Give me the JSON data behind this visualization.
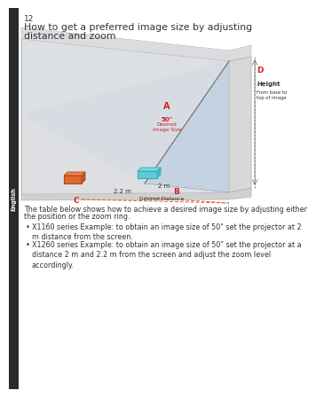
{
  "page_number": "12",
  "sidebar_text": "English",
  "sidebar_bg": "#2a2a2a",
  "title_line1": "How to get a preferred image size by adjusting",
  "title_line2": "distance and zoom",
  "title_fontsize": 7.8,
  "body_text1": "The table below shows how to achieve a desired image size by adjusting either",
  "body_text2": "the position or the zoom ring.",
  "bullet1": "X1160 series Example: to obtain an image size of 50\" set the projector at 2\nm distance from the screen.",
  "bullet2": "X1260 series Example: to obtain an image size of 50\" set the projector at a\ndistance 2 m and 2.2 m from the screen and adjust the zoom level\naccordingly.",
  "label_A": "A",
  "label_B": "B",
  "label_C": "C",
  "label_D": "D",
  "label_50": "50\"",
  "label_desired_image_size": "Desired\nImage Size",
  "label_height": "Height",
  "label_height_sub": "From base to\ntop of image",
  "label_2m": "2 m",
  "label_22m": "2.2 m",
  "label_desired_distance": "Desired Distance",
  "bg_color": "#ffffff",
  "beam_blue": "#b0c8e0",
  "beam_gray": "#c8ccd0",
  "screen_face": "#d8d8d8",
  "screen_edge": "#aaaaaa",
  "floor_color": "#d0d0d0",
  "ceil_color": "#e0e0e0",
  "wall_color": "#c8c8cc",
  "projector_teal": "#5eccd4",
  "projector_orange": "#e06830",
  "orange_dashed": "#d86030",
  "text_dark": "#333333",
  "red_label": "#cc2222",
  "body_fontsize": 5.8,
  "small_fontsize": 4.5
}
